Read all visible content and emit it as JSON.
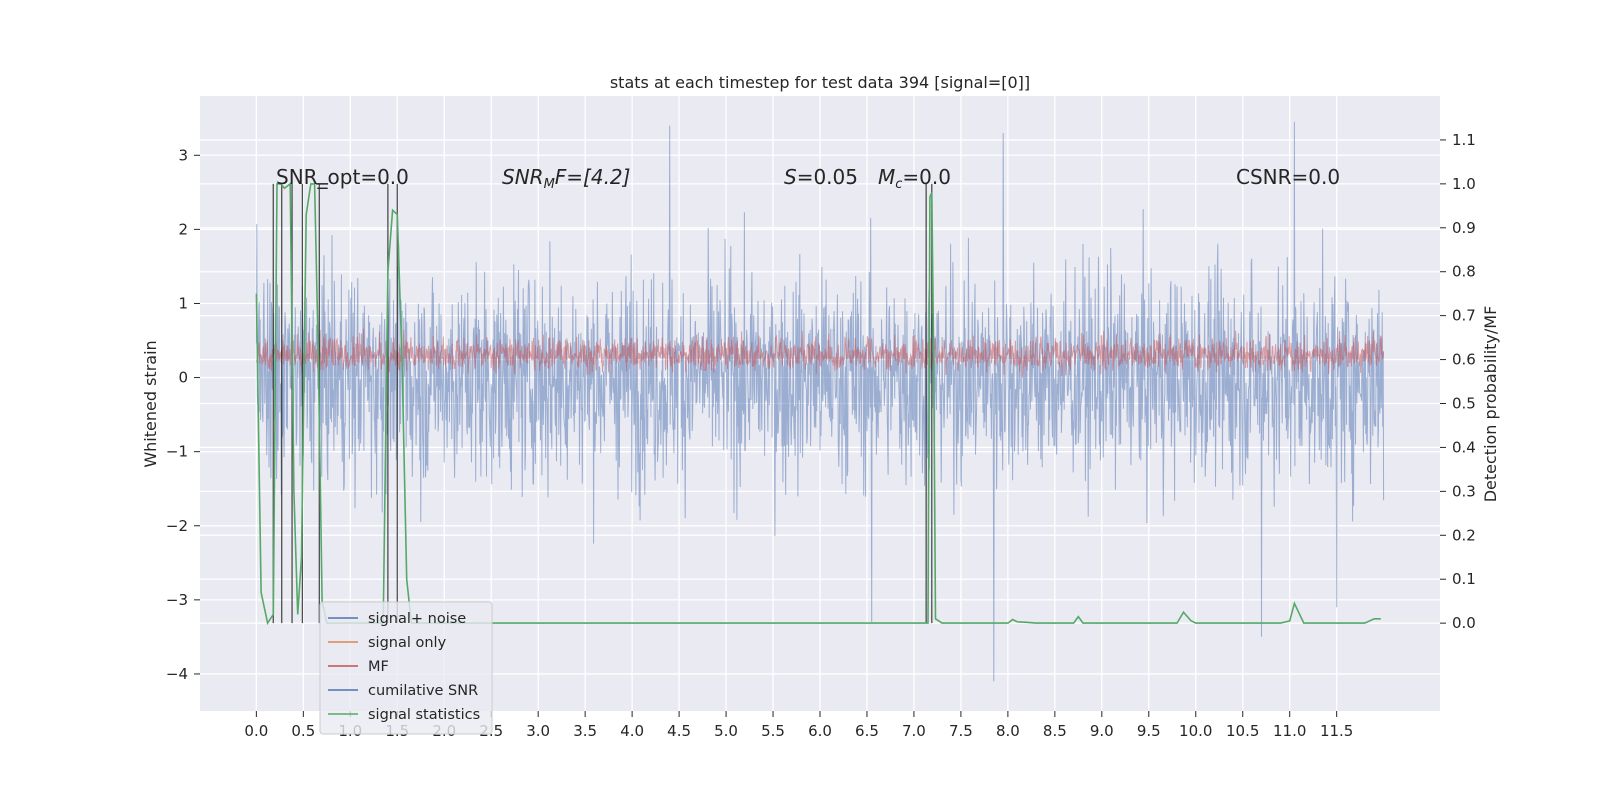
{
  "chart_data": {
    "type": "line",
    "title": "stats at each timestep for test data 394 [signal=[0]]",
    "xlabel": "",
    "ylabel": "Whitened strain",
    "ylabel_right": "Detection probability/MF",
    "xlim": [
      -0.6,
      12.6
    ],
    "ylim": [
      -4.5,
      3.8
    ],
    "ylim_right": [
      -0.2,
      1.2
    ],
    "x_ticks": [
      "0.0",
      "0.5",
      "1.0",
      "1.5",
      "2.0",
      "2.5",
      "3.0",
      "3.5",
      "4.0",
      "4.5",
      "5.0",
      "5.5",
      "6.0",
      "6.5",
      "7.0",
      "7.5",
      "8.0",
      "8.5",
      "9.0",
      "9.5",
      "10.0",
      "10.5",
      "11.0",
      "11.5"
    ],
    "y_ticks": [
      "3",
      "2",
      "1",
      "0",
      "−1",
      "−2",
      "−3",
      "−4"
    ],
    "y_ticks_right": [
      "1.1",
      "1.0",
      "0.9",
      "0.8",
      "0.7",
      "0.6",
      "0.5",
      "0.4",
      "0.3",
      "0.2",
      "0.1",
      "0.0"
    ],
    "annotations": {
      "snr_opt": "SNR_opt=0.0",
      "snr_mf_base": "SNR",
      "snr_mf_sub": "M",
      "snr_mf_rest": "F=[4.2]",
      "s_var": "S",
      "s_val": "=0.05",
      "mc_var": "M",
      "mc_sub": "c",
      "mc_val": "=0.0",
      "csnr": "CSNR=0.0"
    },
    "grid": true,
    "legend_position": "lower-left",
    "legend": [
      {
        "name": "signal+ noise",
        "color": "#4c72b0"
      },
      {
        "name": "signal only",
        "color": "#dd8452"
      },
      {
        "name": "MF",
        "color": "#c44e52"
      },
      {
        "name": "cumilative SNR",
        "color": "#4c72b0"
      },
      {
        "name": "signal statistics",
        "color": "#55a868"
      }
    ],
    "series": [
      {
        "name": "signal+ noise",
        "color": "#4c72b0",
        "duration": 12.0,
        "envelope_upper": 2.2,
        "envelope_lower": -2.2,
        "extremes": [
          [
            4.4,
            3.4
          ],
          [
            7.95,
            3.3
          ],
          [
            11.05,
            3.45
          ],
          [
            10.7,
            -3.5
          ],
          [
            7.85,
            -4.1
          ],
          [
            6.55,
            -3.3
          ],
          [
            11.5,
            -3.1
          ]
        ]
      },
      {
        "name": "MF",
        "color": "#c44e52",
        "baseline": 0.3,
        "range": [
          0.0,
          0.85
        ]
      },
      {
        "name": "signal statistics",
        "color": "#55a868",
        "x": [
          0.0,
          0.05,
          0.12,
          0.18,
          0.22,
          0.26,
          0.3,
          0.36,
          0.4,
          0.44,
          0.48,
          0.53,
          0.58,
          0.62,
          0.66,
          0.7,
          0.75,
          0.8,
          0.85,
          1.0,
          1.2,
          1.35,
          1.4,
          1.45,
          1.5,
          1.55,
          1.6,
          1.65,
          1.7,
          1.8,
          2.0,
          2.5,
          3.0,
          3.5,
          4.0,
          4.5,
          5.0,
          5.5,
          6.0,
          6.5,
          7.0,
          7.15,
          7.17,
          7.19,
          7.21,
          7.23,
          7.3,
          7.5,
          8.0,
          8.05,
          8.1,
          8.2,
          8.3,
          8.5,
          8.7,
          8.75,
          8.8,
          8.9,
          9.0,
          9.5,
          9.8,
          9.87,
          9.95,
          10.0,
          10.5,
          10.9,
          11.0,
          11.05,
          11.15,
          11.3,
          11.8,
          11.9,
          11.97
        ],
        "y": [
          0.75,
          0.07,
          0.0,
          0.02,
          1.0,
          1.0,
          0.99,
          1.0,
          0.3,
          0.02,
          0.15,
          0.93,
          1.0,
          1.0,
          0.6,
          0.05,
          0.0,
          0.0,
          0.0,
          0.0,
          0.0,
          0.0,
          0.8,
          0.94,
          0.93,
          0.6,
          0.1,
          0.0,
          0.0,
          0.0,
          0.0,
          0.0,
          0.0,
          0.0,
          0.0,
          0.0,
          0.0,
          0.0,
          0.0,
          0.0,
          0.0,
          0.0,
          0.97,
          0.98,
          0.6,
          0.01,
          0.0,
          0.0,
          0.0,
          0.008,
          0.003,
          0.002,
          0.0,
          0.0,
          0.0,
          0.015,
          0.0,
          0.0,
          0.0,
          0.0,
          0.0,
          0.025,
          0.005,
          0.0,
          0.0,
          0.0,
          0.005,
          0.045,
          0.0,
          0.0,
          0.0,
          0.01,
          0.01
        ]
      },
      {
        "name": "cumilative SNR",
        "color": "#262626",
        "vertical_lines_x": [
          0.18,
          0.27,
          0.38,
          0.49,
          0.67,
          1.4,
          1.5,
          7.13,
          7.19
        ],
        "marker_x": 0.7,
        "marker_y": 1.0
      }
    ]
  }
}
